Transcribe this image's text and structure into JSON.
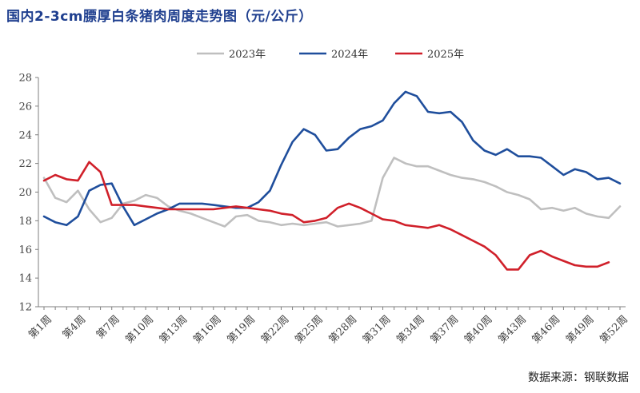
{
  "title": "国内2-3cm膘厚白条猪肉周度走势图（元/公斤）",
  "source": "数据来源：钢联数据",
  "chart_data": {
    "type": "line",
    "title": "国内2-3cm膘厚白条猪肉周度走势图（元/公斤）",
    "xlabel": "",
    "ylabel": "",
    "ylim": [
      12,
      28
    ],
    "yticks": [
      12,
      14,
      16,
      18,
      20,
      22,
      24,
      26,
      28
    ],
    "grid": false,
    "legend_position": "top",
    "categories": [
      "第1周",
      "第2周",
      "第3周",
      "第4周",
      "第5周",
      "第6周",
      "第7周",
      "第8周",
      "第9周",
      "第10周",
      "第11周",
      "第12周",
      "第13周",
      "第14周",
      "第15周",
      "第16周",
      "第17周",
      "第18周",
      "第19周",
      "第20周",
      "第21周",
      "第22周",
      "第23周",
      "第24周",
      "第25周",
      "第26周",
      "第27周",
      "第28周",
      "第29周",
      "第30周",
      "第31周",
      "第32周",
      "第33周",
      "第34周",
      "第35周",
      "第36周",
      "第37周",
      "第38周",
      "第39周",
      "第40周",
      "第41周",
      "第42周",
      "第43周",
      "第44周",
      "第45周",
      "第46周",
      "第47周",
      "第48周",
      "第49周",
      "第50周",
      "第51周",
      "第52周"
    ],
    "tick_labels": [
      "第1周",
      "第4周",
      "第7周",
      "第10周",
      "第13周",
      "第16周",
      "第19周",
      "第22周",
      "第25周",
      "第28周",
      "第31周",
      "第34周",
      "第37周",
      "第40周",
      "第43周",
      "第46周",
      "第49周",
      "第52周"
    ],
    "series": [
      {
        "name": "2023年",
        "color": "#bfbfbf",
        "values": [
          21.0,
          19.6,
          19.3,
          20.1,
          18.8,
          17.9,
          18.2,
          19.2,
          19.4,
          19.8,
          19.6,
          19.0,
          18.7,
          18.5,
          18.2,
          17.9,
          17.6,
          18.3,
          18.4,
          18.0,
          17.9,
          17.7,
          17.8,
          17.7,
          17.8,
          17.9,
          17.6,
          17.7,
          17.8,
          18.0,
          21.0,
          22.4,
          22.0,
          21.8,
          21.8,
          21.5,
          21.2,
          21.0,
          20.9,
          20.7,
          20.4,
          20.0,
          19.8,
          19.5,
          18.8,
          18.9,
          18.7,
          18.9,
          18.5,
          18.3,
          18.2,
          19.0
        ]
      },
      {
        "name": "2024年",
        "color": "#1f4e9c",
        "values": [
          18.3,
          17.9,
          17.7,
          18.3,
          20.1,
          20.5,
          20.6,
          19.0,
          17.7,
          18.1,
          18.5,
          18.8,
          19.2,
          19.2,
          19.2,
          19.1,
          19.0,
          18.9,
          18.9,
          19.3,
          20.1,
          21.9,
          23.5,
          24.4,
          24.0,
          22.9,
          23.0,
          23.8,
          24.4,
          24.6,
          25.0,
          26.2,
          27.0,
          26.7,
          25.6,
          25.5,
          25.6,
          24.9,
          23.6,
          22.9,
          22.6,
          23.0,
          22.5,
          22.5,
          22.4,
          21.8,
          21.2,
          21.6,
          21.4,
          20.9,
          21.0,
          20.6
        ]
      },
      {
        "name": "2025年",
        "color": "#d0202a",
        "values": [
          20.8,
          21.2,
          20.9,
          20.8,
          22.1,
          21.4,
          19.1,
          19.1,
          19.1,
          19.0,
          18.9,
          18.8,
          18.8,
          18.8,
          18.8,
          18.8,
          18.9,
          19.0,
          18.9,
          18.8,
          18.7,
          18.5,
          18.4,
          17.9,
          18.0,
          18.2,
          18.9,
          19.2,
          18.9,
          18.5,
          18.1,
          18.0,
          17.7,
          17.6,
          17.5,
          17.7,
          17.4,
          17.0,
          16.6,
          16.2,
          15.6,
          14.6,
          14.6,
          15.6,
          15.9,
          15.5,
          15.2,
          14.9,
          14.8,
          14.8,
          15.1,
          null
        ]
      }
    ]
  }
}
